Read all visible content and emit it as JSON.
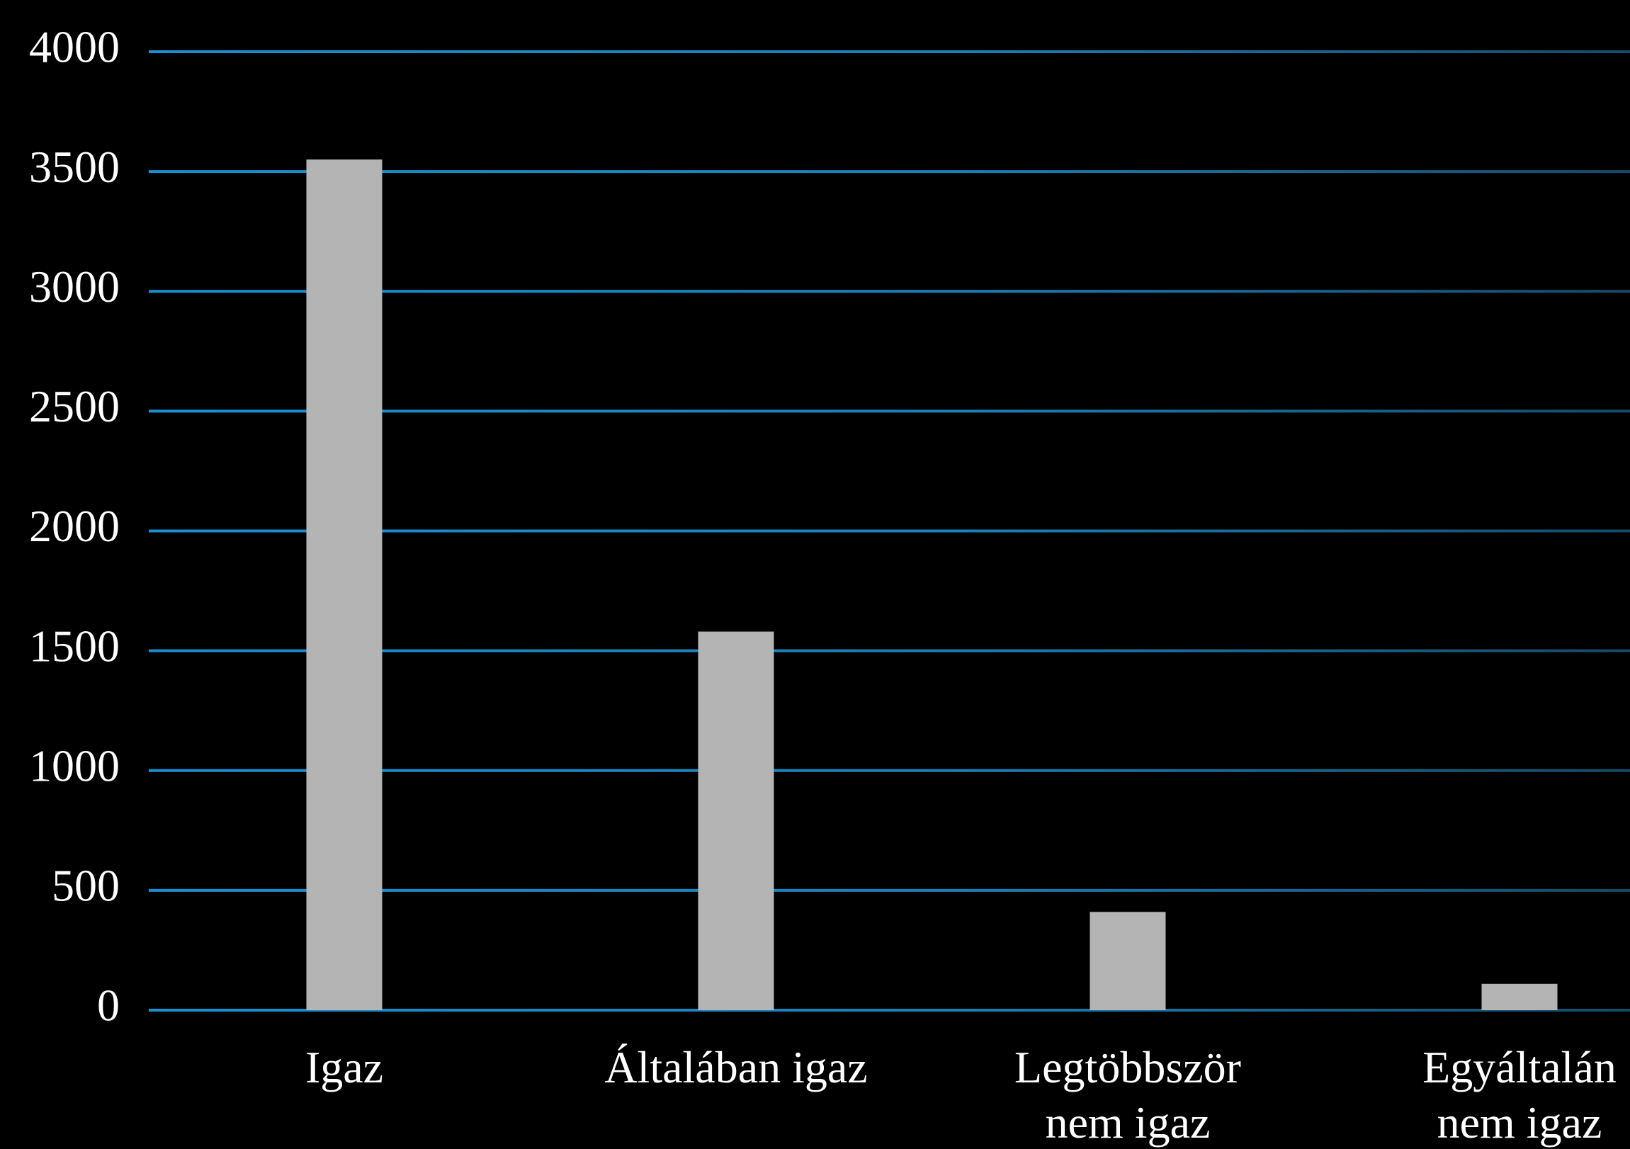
{
  "chart_data": {
    "type": "bar",
    "categories": [
      "Igaz",
      "Általában igaz",
      "Legtöbbször\nnem igaz",
      "Egyáltalán\nnem igaz"
    ],
    "values": [
      3550,
      1580,
      410,
      110
    ],
    "color": "#b4b4b4",
    "grid_color": "#1a90d0",
    "ylim": [
      0,
      4000
    ],
    "yticks": [
      0,
      500,
      1000,
      1500,
      2000,
      2500,
      3000,
      3500,
      4000
    ],
    "grid": true
  }
}
